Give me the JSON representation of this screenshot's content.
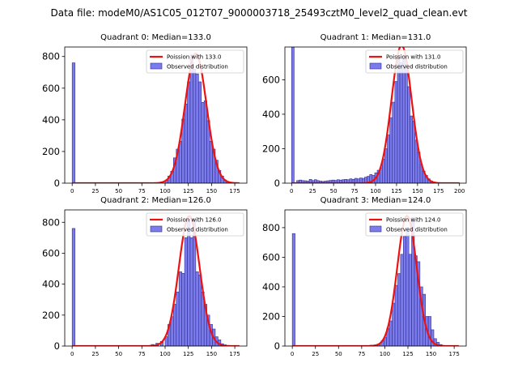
{
  "chart_data": {
    "suptitle": "Data file: modeM0/AS1C05_012T07_9000003718_25493cztM0_level2_quad_clean.evt",
    "colors": {
      "bar_fill": "#7b7bee",
      "bar_edge": "#30308a",
      "line": "#ee1111"
    },
    "panels": [
      {
        "type": "bar",
        "title": "Quadrant 0: Median=133.0",
        "xlim": [
          -8,
          188
        ],
        "ylim": [
          0,
          860
        ],
        "xticks": [
          0,
          25,
          50,
          75,
          100,
          125,
          150,
          175
        ],
        "yticks": [
          0,
          200,
          400,
          600,
          800
        ],
        "legend": [
          "Poission with 133.0",
          "Observed distribution"
        ],
        "legend_loc": "upper right",
        "poisson_mean": 133.0,
        "poisson_sigma": 11.5,
        "poisson_peak": 820,
        "bins": [
          [
            0,
            760
          ],
          [
            85,
            2
          ],
          [
            90,
            3
          ],
          [
            95,
            8
          ],
          [
            100,
            20
          ],
          [
            103,
            45
          ],
          [
            106,
            75
          ],
          [
            109,
            160
          ],
          [
            112,
            215
          ],
          [
            115,
            265
          ],
          [
            118,
            405
          ],
          [
            121,
            500
          ],
          [
            124,
            640
          ],
          [
            127,
            810
          ],
          [
            130,
            720
          ],
          [
            133,
            690
          ],
          [
            136,
            640
          ],
          [
            139,
            510
          ],
          [
            142,
            520
          ],
          [
            145,
            395
          ],
          [
            148,
            265
          ],
          [
            151,
            215
          ],
          [
            154,
            145
          ],
          [
            157,
            80
          ],
          [
            160,
            45
          ],
          [
            163,
            20
          ],
          [
            166,
            10
          ],
          [
            169,
            4
          ]
        ]
      },
      {
        "type": "bar",
        "title": "Quadrant 1: Median=131.0",
        "xlim": [
          -8,
          208
        ],
        "ylim": [
          0,
          790
        ],
        "xticks": [
          0,
          25,
          50,
          75,
          100,
          125,
          150,
          175,
          200
        ],
        "yticks": [
          0,
          200,
          400,
          600
        ],
        "legend": [
          "Poission with 131.0",
          "Observed distribution"
        ],
        "legend_loc": "upper right",
        "poisson_mean": 131.0,
        "poisson_sigma": 12.0,
        "poisson_peak": 800,
        "bins": [
          [
            0,
            790
          ],
          [
            6,
            15
          ],
          [
            9,
            18
          ],
          [
            12,
            15
          ],
          [
            15,
            14
          ],
          [
            18,
            12
          ],
          [
            21,
            22
          ],
          [
            24,
            15
          ],
          [
            27,
            20
          ],
          [
            30,
            15
          ],
          [
            33,
            12
          ],
          [
            36,
            10
          ],
          [
            39,
            12
          ],
          [
            42,
            14
          ],
          [
            45,
            16
          ],
          [
            48,
            18
          ],
          [
            51,
            16
          ],
          [
            54,
            20
          ],
          [
            57,
            18
          ],
          [
            60,
            20
          ],
          [
            63,
            22
          ],
          [
            66,
            20
          ],
          [
            69,
            25
          ],
          [
            72,
            22
          ],
          [
            75,
            28
          ],
          [
            78,
            25
          ],
          [
            81,
            30
          ],
          [
            84,
            28
          ],
          [
            87,
            35
          ],
          [
            90,
            40
          ],
          [
            93,
            50
          ],
          [
            96,
            45
          ],
          [
            99,
            60
          ],
          [
            102,
            75
          ],
          [
            105,
            90
          ],
          [
            108,
            140
          ],
          [
            111,
            200
          ],
          [
            114,
            280
          ],
          [
            117,
            380
          ],
          [
            120,
            470
          ],
          [
            123,
            590
          ],
          [
            126,
            740
          ],
          [
            129,
            700
          ],
          [
            132,
            720
          ],
          [
            135,
            690
          ],
          [
            138,
            560
          ],
          [
            141,
            390
          ],
          [
            144,
            360
          ],
          [
            147,
            250
          ],
          [
            150,
            180
          ],
          [
            153,
            110
          ],
          [
            156,
            70
          ],
          [
            159,
            45
          ],
          [
            162,
            25
          ],
          [
            165,
            12
          ],
          [
            168,
            6
          ]
        ]
      },
      {
        "type": "bar",
        "title": "Quadrant 2: Median=126.0",
        "xlim": [
          -8,
          188
        ],
        "ylim": [
          0,
          880
        ],
        "xticks": [
          0,
          25,
          50,
          75,
          100,
          125,
          150,
          175
        ],
        "yticks": [
          0,
          200,
          400,
          600,
          800
        ],
        "legend": [
          "Poission with 126.0",
          "Observed distribution"
        ],
        "legend_loc": "upper right",
        "poisson_mean": 126.0,
        "poisson_sigma": 11.2,
        "poisson_peak": 840,
        "bins": [
          [
            0,
            760
          ],
          [
            80,
            2
          ],
          [
            85,
            10
          ],
          [
            90,
            18
          ],
          [
            95,
            30
          ],
          [
            100,
            60
          ],
          [
            103,
            140
          ],
          [
            106,
            190
          ],
          [
            109,
            270
          ],
          [
            112,
            350
          ],
          [
            115,
            480
          ],
          [
            118,
            470
          ],
          [
            121,
            700
          ],
          [
            124,
            820
          ],
          [
            127,
            700
          ],
          [
            130,
            820
          ],
          [
            133,
            480
          ],
          [
            136,
            460
          ],
          [
            139,
            350
          ],
          [
            142,
            270
          ],
          [
            145,
            200
          ],
          [
            148,
            140
          ],
          [
            151,
            110
          ],
          [
            154,
            60
          ],
          [
            157,
            40
          ],
          [
            160,
            15
          ],
          [
            163,
            8
          ]
        ]
      },
      {
        "type": "bar",
        "title": "Quadrant 3: Median=124.0",
        "xlim": [
          -8,
          188
        ],
        "ylim": [
          0,
          920
        ],
        "xticks": [
          0,
          25,
          50,
          75,
          100,
          125,
          150,
          175
        ],
        "yticks": [
          0,
          200,
          400,
          600,
          800
        ],
        "legend": [
          "Poission with 124.0",
          "Observed distribution"
        ],
        "legend_loc": "upper right",
        "poisson_mean": 124.0,
        "poisson_sigma": 10.5,
        "poisson_peak": 880,
        "bins": [
          [
            0,
            760
          ],
          [
            72,
            2
          ],
          [
            78,
            4
          ],
          [
            84,
            6
          ],
          [
            88,
            8
          ],
          [
            92,
            10
          ],
          [
            96,
            35
          ],
          [
            99,
            60
          ],
          [
            102,
            120
          ],
          [
            105,
            170
          ],
          [
            108,
            290
          ],
          [
            111,
            410
          ],
          [
            114,
            490
          ],
          [
            117,
            620
          ],
          [
            120,
            740
          ],
          [
            123,
            800
          ],
          [
            126,
            620
          ],
          [
            129,
            870
          ],
          [
            132,
            610
          ],
          [
            135,
            570
          ],
          [
            138,
            400
          ],
          [
            141,
            350
          ],
          [
            144,
            200
          ],
          [
            147,
            200
          ],
          [
            150,
            110
          ],
          [
            153,
            50
          ],
          [
            156,
            25
          ],
          [
            159,
            10
          ]
        ]
      }
    ]
  }
}
